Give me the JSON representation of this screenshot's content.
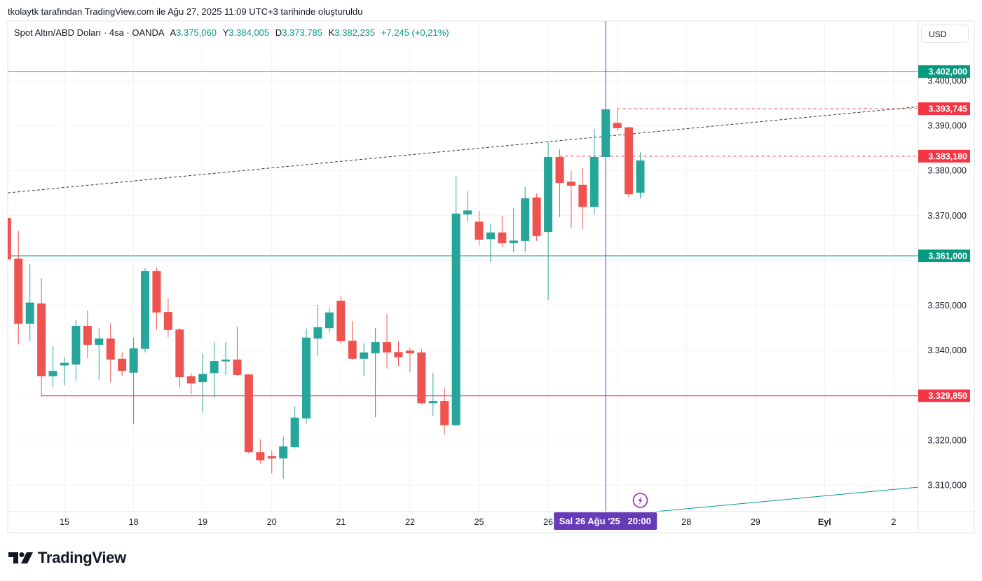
{
  "caption": "tkolaytk tarafından TradingView.com ile Ağu 27, 2025 11:09 UTC+3 tarihinde oluşturuldu",
  "legend": {
    "symbol": "Spot Altın/ABD Doları · 4sa · OANDA",
    "open_key": "A",
    "open": "3.375,060",
    "high_key": "Y",
    "high": "3.384,005",
    "low_key": "D",
    "low": "3.373,785",
    "close_key": "K",
    "close": "3.382,235",
    "change": "+7,245 (+0,21%)"
  },
  "currency_button": "USD",
  "brand": "TradingView",
  "colors": {
    "up": "#26a69a",
    "down": "#ef5350",
    "support": "#089981",
    "resistance": "#f23645",
    "purple": "#673ab7",
    "trend": "#2a3a3a",
    "grid": "#f0f3fa"
  },
  "chart_data": {
    "type": "candlestick",
    "symbol": "Spot Altın/ABD Doları",
    "interval": "4sa",
    "ylim": [
      3302,
      3411
    ],
    "grid": true,
    "price_ticks": [
      {
        "value": 3400,
        "label": "3.400,000"
      },
      {
        "value": 3390,
        "label": "3.390,000"
      },
      {
        "value": 3380,
        "label": "3.380,000"
      },
      {
        "value": 3370,
        "label": "3.370,000"
      },
      {
        "value": 3350,
        "label": "3.350,000"
      },
      {
        "value": 3340,
        "label": "3.340,000"
      },
      {
        "value": 3320,
        "label": "3.320,000"
      },
      {
        "value": 3310,
        "label": "3.310,000"
      }
    ],
    "time_ticks": [
      {
        "label": "15",
        "time": "2025-08-15 00:00"
      },
      {
        "label": "18",
        "time": "2025-08-18 00:00"
      },
      {
        "label": "19",
        "time": "2025-08-19 00:00"
      },
      {
        "label": "20",
        "time": "2025-08-20 00:00"
      },
      {
        "label": "21",
        "time": "2025-08-21 00:00"
      },
      {
        "label": "22",
        "time": "2025-08-22 00:00"
      },
      {
        "label": "25",
        "time": "2025-08-25 00:00"
      },
      {
        "label": "26",
        "time": "2025-08-26 00:00"
      },
      {
        "label": "28",
        "time": "2025-08-28 00:00"
      },
      {
        "label": "29",
        "time": "2025-08-29 00:00"
      },
      {
        "label": "Eyl",
        "time": "2025-09-01 00:00"
      },
      {
        "label": "2",
        "time": "2025-09-02 00:00"
      }
    ],
    "candles_columns": [
      "time",
      "open",
      "high",
      "low",
      "close"
    ],
    "candles": [
      [
        "2025-08-14 04:00",
        3369.4,
        3369.6,
        3360.0,
        3360.2
      ],
      [
        "2025-08-14 08:00",
        3360.4,
        3366.5,
        3341.3,
        3345.9
      ],
      [
        "2025-08-14 12:00",
        3345.9,
        3359.1,
        3342.0,
        3350.6
      ],
      [
        "2025-08-14 16:00",
        3350.4,
        3356.0,
        3329.6,
        3334.2
      ],
      [
        "2025-08-14 20:00",
        3334.2,
        3340.9,
        3331.8,
        3335.4
      ],
      [
        "2025-08-15 00:00",
        3336.6,
        3338.5,
        3332.2,
        3337.2
      ],
      [
        "2025-08-15 04:00",
        3336.8,
        3346.7,
        3333.2,
        3345.4
      ],
      [
        "2025-08-15 08:00",
        3345.4,
        3348.8,
        3338.2,
        3341.2
      ],
      [
        "2025-08-15 12:00",
        3341.2,
        3344.9,
        3333.4,
        3342.6
      ],
      [
        "2025-08-15 16:00",
        3342.6,
        3346.0,
        3332.9,
        3337.9
      ],
      [
        "2025-08-15 20:00",
        3338.1,
        3339.5,
        3334.3,
        3335.4
      ],
      [
        "2025-08-18 00:00",
        3335.0,
        3342.8,
        3323.6,
        3340.4
      ],
      [
        "2025-08-18 04:00",
        3340.3,
        3358.2,
        3339.5,
        3357.6
      ],
      [
        "2025-08-18 08:00",
        3357.6,
        3358.4,
        3344.5,
        3348.4
      ],
      [
        "2025-08-18 12:00",
        3348.5,
        3351.6,
        3342.9,
        3344.5
      ],
      [
        "2025-08-18 16:00",
        3344.6,
        3344.9,
        3331.7,
        3334.0
      ],
      [
        "2025-08-18 20:00",
        3334.2,
        3334.8,
        3330.3,
        3332.6
      ],
      [
        "2025-08-19 00:00",
        3332.9,
        3339.2,
        3326.1,
        3334.7
      ],
      [
        "2025-08-19 04:00",
        3334.9,
        3341.8,
        3329.3,
        3337.6
      ],
      [
        "2025-08-19 08:00",
        3337.5,
        3341.8,
        3334.5,
        3337.9
      ],
      [
        "2025-08-19 12:00",
        3337.9,
        3345.2,
        3334.2,
        3334.5
      ],
      [
        "2025-08-19 16:00",
        3334.6,
        3334.6,
        3317.0,
        3317.3
      ],
      [
        "2025-08-19 20:00",
        3317.3,
        3320.1,
        3314.8,
        3315.5
      ],
      [
        "2025-08-20 00:00",
        3316.4,
        3317.6,
        3312.6,
        3315.9
      ],
      [
        "2025-08-20 04:00",
        3315.9,
        3320.8,
        3311.4,
        3318.6
      ],
      [
        "2025-08-20 08:00",
        3318.4,
        3327.5,
        3318.1,
        3325.0
      ],
      [
        "2025-08-20 12:00",
        3324.8,
        3344.8,
        3323.6,
        3342.8
      ],
      [
        "2025-08-20 16:00",
        3342.6,
        3350.1,
        3338.7,
        3345.1
      ],
      [
        "2025-08-20 20:00",
        3344.9,
        3349.3,
        3344.0,
        3348.4
      ],
      [
        "2025-08-21 00:00",
        3351.0,
        3352.1,
        3341.5,
        3342.0
      ],
      [
        "2025-08-21 04:00",
        3342.1,
        3346.5,
        3337.9,
        3338.1
      ],
      [
        "2025-08-21 08:00",
        3338.1,
        3341.5,
        3334.2,
        3339.5
      ],
      [
        "2025-08-21 12:00",
        3339.3,
        3344.9,
        3325.1,
        3341.8
      ],
      [
        "2025-08-21 16:00",
        3341.8,
        3348.1,
        3335.9,
        3339.5
      ],
      [
        "2025-08-21 20:00",
        3339.6,
        3342.0,
        3336.5,
        3338.4
      ],
      [
        "2025-08-22 00:00",
        3339.9,
        3340.6,
        3335.1,
        3339.3
      ],
      [
        "2025-08-22 04:00",
        3339.5,
        3340.3,
        3327.9,
        3328.2
      ],
      [
        "2025-08-22 08:00",
        3328.2,
        3335.0,
        3325.3,
        3328.7
      ],
      [
        "2025-08-22 12:00",
        3328.7,
        3331.7,
        3321.2,
        3323.3
      ],
      [
        "2025-08-22 16:00",
        3323.3,
        3378.8,
        3323.1,
        3370.4
      ],
      [
        "2025-08-22 20:00",
        3370.2,
        3375.4,
        3368.6,
        3371.1
      ],
      [
        "2025-08-25 00:00",
        3368.6,
        3371.0,
        3363.3,
        3364.6
      ],
      [
        "2025-08-25 04:00",
        3364.7,
        3368.2,
        3359.6,
        3366.2
      ],
      [
        "2025-08-25 08:00",
        3366.2,
        3369.9,
        3363.0,
        3363.8
      ],
      [
        "2025-08-25 12:00",
        3363.8,
        3371.6,
        3361.8,
        3364.4
      ],
      [
        "2025-08-25 16:00",
        3364.3,
        3376.3,
        3361.9,
        3373.8
      ],
      [
        "2025-08-25 20:00",
        3374.0,
        3374.9,
        3364.3,
        3365.4
      ],
      [
        "2025-08-26 00:00",
        3366.3,
        3386.4,
        3351.2,
        3383.0
      ],
      [
        "2025-08-26 04:00",
        3383.0,
        3384.7,
        3369.6,
        3377.2
      ],
      [
        "2025-08-26 08:00",
        3377.5,
        3379.9,
        3367.1,
        3376.6
      ],
      [
        "2025-08-26 12:00",
        3376.8,
        3380.5,
        3366.9,
        3371.9
      ],
      [
        "2025-08-26 16:00",
        3371.9,
        3389.2,
        3370.2,
        3383.0
      ],
      [
        "2025-08-26 20:00",
        3383.0,
        3393.7,
        3382.7,
        3393.6
      ],
      [
        "2025-08-27 00:00",
        3390.6,
        3393.6,
        3388.8,
        3389.4
      ],
      [
        "2025-08-27 04:00",
        3389.6,
        3389.7,
        3374.0,
        3374.7
      ],
      [
        "2025-08-27 08:00",
        3375.06,
        3384.005,
        3373.785,
        3382.235
      ]
    ],
    "horizontal_lines": [
      {
        "price": 3402.0,
        "label": "3.402,000",
        "color": "#7e57c2",
        "label_color": "#089981",
        "style": "solid"
      },
      {
        "price": 3361.0,
        "label": "3.361,000",
        "color": "#089981",
        "label_color": "#089981",
        "style": "solid"
      },
      {
        "price": 3329.85,
        "label": "3.329,850",
        "color": "#f23645",
        "label_color": "#f23645",
        "style": "solid",
        "from": "2025-08-14 16:00"
      },
      {
        "price": 3393.745,
        "label": "3.393,745",
        "color": "#f23645",
        "label_color": "#f23645",
        "style": "dashed",
        "from": "2025-08-27 00:00"
      },
      {
        "price": 3383.18,
        "label": "3.383,180",
        "color": "#f23645",
        "label_color": "#f23645",
        "style": "dashed",
        "from": "2025-08-26 04:00"
      }
    ],
    "trend_lines": [
      {
        "from": [
          "2025-08-14 04:00",
          3375.0
        ],
        "to": [
          "2025-08-26 20:00",
          3387.6
        ],
        "color": "#2a3a3a",
        "style": "dashed",
        "extend": "both"
      },
      {
        "from": [
          "2025-08-27 12:00",
          3304.0
        ],
        "to": [
          "2025-09-02 00:00",
          3309.0
        ],
        "color": "#089981",
        "style": "solid",
        "extend": "right"
      }
    ],
    "crosshair": {
      "time": "2025-08-26 20:00",
      "label": "Sal 26 Ağu '25   20:00"
    },
    "event_marker": {
      "time": "2025-08-27 08:00",
      "icon": "lightning-icon",
      "color": "#9c27b0"
    }
  }
}
